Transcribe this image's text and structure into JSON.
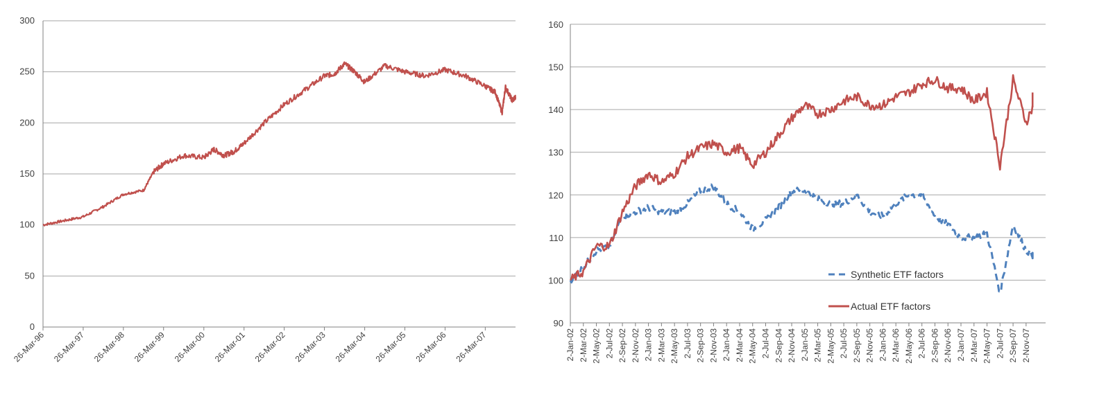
{
  "chart_data": [
    {
      "type": "line",
      "title": "",
      "xlabel": "",
      "ylabel": "",
      "ylim": [
        0,
        300
      ],
      "yticks": [
        0,
        50,
        100,
        150,
        200,
        250,
        300
      ],
      "categories": [
        "26-Mar-96",
        "26-Mar-97",
        "26-Mar-98",
        "26-Mar-99",
        "26-Mar-00",
        "26-Mar-01",
        "26-Mar-02",
        "26-Mar-03",
        "26-Mar-04",
        "26-Mar-05",
        "26-Mar-06",
        "26-Mar-07"
      ],
      "grid": true,
      "legend": "none",
      "colors": {
        "line": "#c0504d"
      },
      "series": [
        {
          "x": [
            "26-Mar-96",
            "26-Sep-96",
            "26-Mar-97",
            "26-Sep-97",
            "26-Mar-98",
            "26-Sep-98",
            "26-Dec-98",
            "26-Mar-99",
            "26-Sep-99",
            "26-Mar-00",
            "26-Jun-00",
            "26-Sep-00",
            "26-Dec-00",
            "26-Mar-01",
            "26-Sep-01",
            "26-Mar-02",
            "26-Sep-02",
            "26-Mar-03",
            "26-Jun-03",
            "26-Sep-03",
            "26-Dec-03",
            "26-Mar-04",
            "26-Sep-04",
            "26-Mar-05",
            "26-Sep-05",
            "26-Mar-06",
            "26-Sep-06",
            "26-Mar-07",
            "26-Jun-07",
            "26-Aug-07",
            "26-Sep-07",
            "26-Nov-07",
            "26-Dec-07"
          ],
          "values": [
            100,
            104,
            108,
            118,
            130,
            134,
            152,
            160,
            168,
            166,
            174,
            168,
            172,
            180,
            200,
            218,
            232,
            246,
            248,
            258,
            250,
            240,
            256,
            250,
            246,
            252,
            246,
            236,
            230,
            210,
            235,
            222,
            225
          ]
        }
      ]
    },
    {
      "type": "line",
      "title": "",
      "xlabel": "",
      "ylabel": "",
      "ylim": [
        90,
        160
      ],
      "yticks": [
        90,
        100,
        110,
        120,
        130,
        140,
        150,
        160
      ],
      "categories": [
        "2-Jan-02",
        "2-Mar-02",
        "2-May-02",
        "2-Jul-02",
        "2-Sep-02",
        "2-Nov-02",
        "2-Jan-03",
        "2-Mar-03",
        "2-May-03",
        "2-Jul-03",
        "2-Sep-03",
        "2-Nov-03",
        "2-Jan-04",
        "2-Mar-04",
        "2-May-04",
        "2-Jul-04",
        "2-Sep-04",
        "2-Nov-04",
        "2-Jan-05",
        "2-Mar-05",
        "2-May-05",
        "2-Jul-05",
        "2-Sep-05",
        "2-Nov-05",
        "2-Jan-06",
        "2-Mar-06",
        "2-May-06",
        "2-Jul-06",
        "2-Sep-06",
        "2-Nov-06",
        "2-Jan-07",
        "2-Mar-07",
        "2-May-07",
        "2-Jul-07",
        "2-Sep-07",
        "2-Nov-07"
      ],
      "grid": true,
      "legend": "inside-bottom-right",
      "series": [
        {
          "name": "Synthetic ETF factors",
          "color": "#4f81bd",
          "style": "dashed",
          "values": [
            100,
            103,
            107,
            108,
            115,
            116,
            117,
            116,
            116,
            118,
            121,
            122,
            118,
            116,
            112,
            114,
            117,
            121,
            121,
            119,
            118,
            118,
            120,
            116,
            115,
            118,
            120,
            120,
            115,
            113,
            110,
            110,
            111,
            97,
            113,
            107
          ],
          "end_value": 105
        },
        {
          "name": "Actual ETF factors",
          "color": "#c0504d",
          "style": "solid",
          "values": [
            100,
            102,
            108,
            108,
            116,
            122,
            125,
            123,
            125,
            129,
            131,
            132,
            130,
            131,
            127,
            130,
            134,
            138,
            141,
            139,
            140,
            142,
            143,
            141,
            141,
            143,
            144,
            146,
            147,
            145,
            145,
            142,
            144,
            127,
            147,
            137
          ],
          "end_value": 144
        }
      ]
    }
  ]
}
